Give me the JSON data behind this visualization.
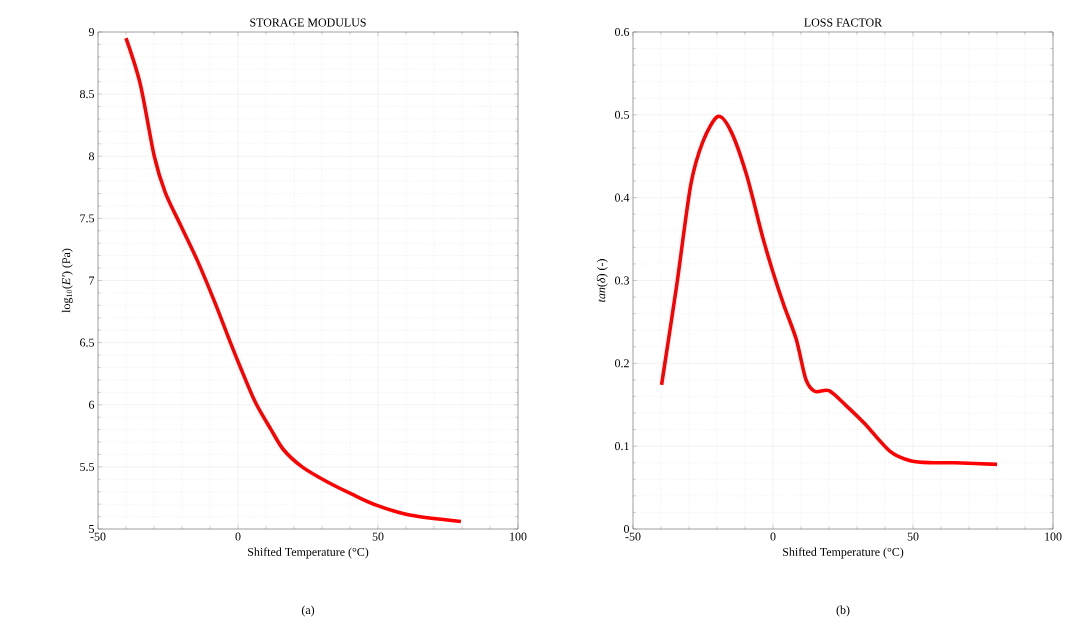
{
  "chart_data": [
    {
      "type": "line",
      "title": "STORAGE MODULUS",
      "xlabel": "Shifted Temperature (°C)",
      "ylabel": "log$_{10}$(*E′*) (Pa)",
      "annotations": [
        "(a)"
      ],
      "x": [
        -40,
        -34.9,
        -29.9,
        -26,
        -20.4,
        -14.3,
        -8.2,
        -2.7,
        0.7,
        6.2,
        11.8,
        16.2,
        22.9,
        31.8,
        40.7,
        49.6,
        61.8,
        79.6
      ],
      "series": [
        {
          "color": "#ff0000",
          "values": [
            8.95,
            8.58,
            8.0,
            7.71,
            7.44,
            7.15,
            6.82,
            6.5,
            6.31,
            6.02,
            5.8,
            5.64,
            5.5,
            5.38,
            5.28,
            5.19,
            5.11,
            5.06
          ]
        }
      ],
      "xlim": [
        -50,
        100
      ],
      "xticks": [
        -50,
        0,
        50,
        100
      ],
      "ylim": [
        5,
        9
      ],
      "yticks": [
        5,
        5.5,
        6,
        6.5,
        7,
        7.5,
        8,
        8.5,
        9
      ],
      "grid": true
    },
    {
      "type": "line",
      "title": "LOSS FACTOR",
      "xlabel": "Shifted Temperature (°C)",
      "ylabel": "*tan*(*δ*) (-)",
      "annotations": [
        "(b)"
      ],
      "x": [
        -39.8,
        -34.4,
        -29.4,
        -25,
        -19.7,
        -15,
        -9.4,
        -3.9,
        0,
        3.9,
        8.3,
        11.7,
        15,
        20,
        26.1,
        32.8,
        41.7,
        49.4,
        57.2,
        65,
        80
      ],
      "series": [
        {
          "color": "#ff0000",
          "values": [
            0.174,
            0.294,
            0.415,
            0.468,
            0.498,
            0.48,
            0.427,
            0.355,
            0.31,
            0.27,
            0.229,
            0.181,
            0.166,
            0.167,
            0.149,
            0.127,
            0.094,
            0.082,
            0.08,
            0.08,
            0.078
          ]
        }
      ],
      "xlim": [
        -50,
        100
      ],
      "xticks": [
        -50,
        0,
        50,
        100
      ],
      "ylim": [
        0,
        0.6
      ],
      "yticks": [
        0,
        0.1,
        0.2,
        0.3,
        0.4,
        0.5,
        0.6
      ],
      "grid": true
    }
  ]
}
